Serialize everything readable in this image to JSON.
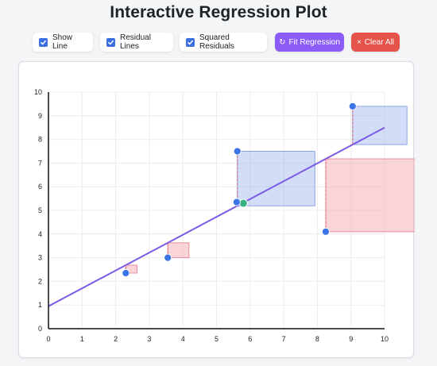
{
  "title": "Interactive Regression Plot",
  "controls": {
    "show_line": {
      "label": "Show Line",
      "checked": true
    },
    "residual_lines": {
      "label": "Residual Lines",
      "checked": true
    },
    "squared_residuals": {
      "label": "Squared Residuals",
      "checked": true
    },
    "fit_button": {
      "icon": "↻",
      "label": "Fit Regression",
      "color": "#8b5cf6"
    },
    "clear_button": {
      "icon": "×",
      "label": "Clear All",
      "color": "#e5534b"
    }
  },
  "colors": {
    "point": "#3b74e6",
    "line": "#7b5be6",
    "residual_line": "#e46a6a",
    "square_positive": "#9db4ef",
    "square_negative": "#f2a1ab",
    "highlight_point": "#36b37e"
  },
  "chart_data": {
    "type": "scatter",
    "xlim": [
      0,
      10
    ],
    "ylim": [
      0,
      10
    ],
    "x_ticks": [
      "0",
      "1",
      "2",
      "3",
      "4",
      "5",
      "6",
      "7",
      "8",
      "9",
      "10"
    ],
    "y_ticks": [
      "0",
      "1",
      "2",
      "3",
      "4",
      "5",
      "6",
      "7",
      "8",
      "9",
      "10"
    ],
    "grid": true,
    "regression_line": {
      "intercept": 0.95,
      "slope": 0.755
    },
    "points": [
      {
        "x": 2.3,
        "y": 2.35
      },
      {
        "x": 3.55,
        "y": 3.0
      },
      {
        "x": 5.6,
        "y": 5.35
      },
      {
        "x": 5.62,
        "y": 7.5
      },
      {
        "x": 8.25,
        "y": 4.1
      },
      {
        "x": 9.05,
        "y": 9.4
      }
    ],
    "highlight_point": {
      "x": 5.8,
      "y": 5.3
    }
  }
}
